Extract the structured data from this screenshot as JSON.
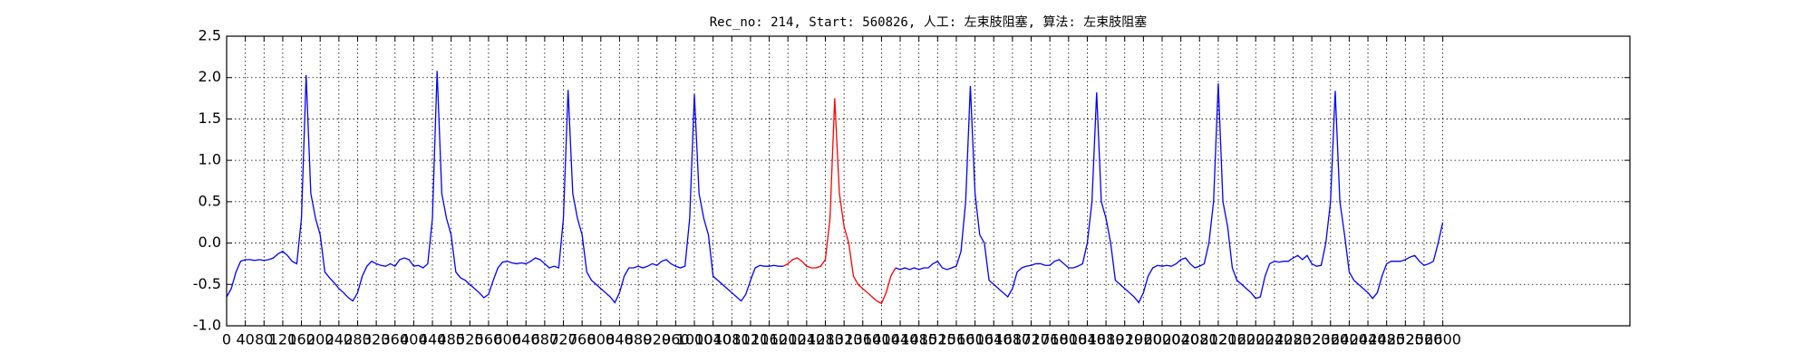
{
  "chart_data": {
    "type": "line",
    "title": "Rec_no: 214, Start: 560826, 人工: 左束肢阻塞, 算法: 左束肢阻塞",
    "xlim": [
      0,
      3000
    ],
    "ylim": [
      -1.0,
      2.5
    ],
    "xticks": [
      0,
      40,
      80,
      120,
      160,
      200,
      240,
      280,
      320,
      360,
      400,
      440,
      480,
      520,
      560,
      600,
      640,
      680,
      720,
      760,
      800,
      840,
      880,
      920,
      960,
      1000,
      1040,
      1080,
      1120,
      1160,
      1200,
      1240,
      1280,
      1320,
      1360,
      1400,
      1440,
      1480,
      1520,
      1560,
      1600,
      1640,
      1680,
      1720,
      1760,
      1800,
      1840,
      1880,
      1920,
      1960,
      2000,
      2040,
      2080,
      2120,
      2160,
      2200,
      2240,
      2280,
      2320,
      2360,
      2400,
      2440,
      2480,
      2520,
      2560,
      2600
    ],
    "yticks": [
      {
        "value": -1.0,
        "label": "-1.0"
      },
      -0.5,
      {
        "value": 0.0,
        "label": "0.0"
      },
      0.5,
      {
        "value": 1.0,
        "label": "1.0"
      },
      1.5,
      {
        "value": 2.0,
        "label": "2.0"
      },
      2.5
    ],
    "grid": true,
    "series": [
      {
        "color": "#0000ff",
        "x": [
          0,
          10,
          20,
          30,
          40,
          50,
          60,
          70,
          80,
          90,
          100,
          110,
          120,
          130,
          140,
          150,
          160,
          170,
          180,
          190,
          200,
          210,
          220,
          230,
          240,
          250,
          260,
          270,
          280,
          290,
          300,
          310,
          320,
          330,
          340,
          350,
          360,
          370,
          380,
          390,
          400,
          410,
          420,
          430,
          440,
          450,
          460,
          470,
          480,
          490,
          500,
          510,
          520,
          530,
          540,
          550,
          560,
          570,
          580,
          590,
          600,
          610,
          620,
          630,
          640,
          650,
          660,
          670,
          680,
          690,
          700,
          710,
          720,
          730,
          740,
          750,
          760,
          770,
          780,
          790,
          800,
          810,
          820,
          830,
          840,
          850,
          860,
          870,
          880,
          890,
          900,
          910,
          920,
          930,
          940,
          950,
          960,
          970,
          980,
          990,
          1000,
          1010,
          1020,
          1030,
          1040,
          1050,
          1060,
          1070,
          1080,
          1090,
          1100,
          1110,
          1120,
          1130,
          1140,
          1150,
          1160,
          1170,
          1180,
          1190,
          1200,
          1210,
          1220,
          1230,
          1240,
          1250,
          1260,
          1270,
          1280,
          1290,
          1300,
          1310,
          1320,
          1330,
          1340,
          1350,
          1360,
          1370,
          1380,
          1390,
          1400,
          1410,
          1420,
          1430,
          1440,
          1450,
          1460,
          1470,
          1480,
          1490,
          1500,
          1510,
          1520,
          1530,
          1540,
          1550,
          1560,
          1570,
          1580,
          1590,
          1600,
          1610,
          1620,
          1630,
          1640,
          1650,
          1660,
          1670,
          1680,
          1690,
          1700,
          1710,
          1720,
          1730,
          1740,
          1750,
          1760,
          1770,
          1780,
          1790,
          1800,
          1810,
          1820,
          1830,
          1840,
          1850,
          1860,
          1870,
          1880,
          1890,
          1900,
          1910,
          1920,
          1930,
          1940,
          1950,
          1960,
          1970,
          1980,
          1990,
          2000,
          2010,
          2020,
          2030,
          2040,
          2050,
          2060,
          2070,
          2080,
          2090,
          2100,
          2110,
          2120,
          2130,
          2140,
          2150,
          2160,
          2170,
          2180,
          2190,
          2200,
          2210,
          2220,
          2230,
          2240,
          2250,
          2260,
          2270,
          2280,
          2290,
          2300,
          2310,
          2320,
          2330,
          2340,
          2350,
          2360,
          2370,
          2380,
          2390,
          2400,
          2410,
          2420,
          2430,
          2440,
          2450,
          2460,
          2470,
          2480,
          2490,
          2500,
          2510,
          2520,
          2530,
          2540,
          2550,
          2560,
          2570,
          2580,
          2590,
          2600
        ],
        "values": [
          -0.65,
          -0.55,
          -0.35,
          -0.22,
          -0.2,
          -0.2,
          -0.21,
          -0.2,
          -0.21,
          -0.2,
          -0.18,
          -0.13,
          -0.1,
          -0.15,
          -0.22,
          -0.25,
          0.3,
          2.03,
          0.6,
          0.3,
          0.1,
          -0.35,
          -0.42,
          -0.48,
          -0.55,
          -0.6,
          -0.66,
          -0.7,
          -0.6,
          -0.4,
          -0.28,
          -0.22,
          -0.25,
          -0.27,
          -0.28,
          -0.25,
          -0.28,
          -0.2,
          -0.18,
          -0.2,
          -0.28,
          -0.27,
          -0.3,
          -0.25,
          0.3,
          2.08,
          0.6,
          0.3,
          0.1,
          -0.35,
          -0.42,
          -0.45,
          -0.5,
          -0.55,
          -0.6,
          -0.66,
          -0.62,
          -0.45,
          -0.3,
          -0.23,
          -0.22,
          -0.24,
          -0.25,
          -0.24,
          -0.25,
          -0.22,
          -0.18,
          -0.2,
          -0.25,
          -0.3,
          -0.28,
          -0.3,
          0.3,
          1.85,
          0.6,
          0.3,
          0.1,
          -0.35,
          -0.45,
          -0.5,
          -0.55,
          -0.6,
          -0.65,
          -0.72,
          -0.6,
          -0.4,
          -0.3,
          -0.3,
          -0.28,
          -0.3,
          -0.28,
          -0.25,
          -0.27,
          -0.22,
          -0.2,
          -0.25,
          -0.28,
          -0.3,
          -0.28,
          0.3,
          1.8,
          0.6,
          0.3,
          0.1,
          -0.4,
          -0.45,
          -0.5,
          -0.55,
          -0.6,
          -0.65,
          -0.7,
          -0.62,
          -0.45,
          -0.3,
          -0.27,
          -0.28,
          -0.28,
          -0.27,
          -0.28,
          -0.28,
          null,
          null,
          null,
          null,
          null,
          null,
          null,
          null,
          null,
          null,
          null,
          null,
          null,
          null,
          null,
          null,
          null,
          null,
          null,
          null,
          null,
          null,
          null,
          -0.3,
          -0.32,
          -0.3,
          -0.32,
          -0.3,
          -0.32,
          -0.3,
          -0.3,
          -0.25,
          -0.22,
          -0.3,
          -0.32,
          -0.3,
          -0.28,
          -0.1,
          0.5,
          1.9,
          0.6,
          0.1,
          0.0,
          -0.45,
          -0.5,
          -0.55,
          -0.6,
          -0.65,
          -0.55,
          -0.35,
          -0.3,
          -0.28,
          -0.27,
          -0.25,
          -0.25,
          -0.27,
          -0.27,
          -0.22,
          -0.2,
          -0.25,
          -0.3,
          -0.3,
          -0.28,
          -0.25,
          0.0,
          0.5,
          1.82,
          0.5,
          0.3,
          0.0,
          -0.45,
          -0.5,
          -0.55,
          -0.6,
          -0.65,
          -0.72,
          -0.6,
          -0.4,
          -0.3,
          -0.27,
          -0.28,
          -0.27,
          -0.28,
          -0.25,
          -0.2,
          -0.18,
          -0.25,
          -0.3,
          -0.28,
          -0.25,
          0.0,
          0.5,
          1.93,
          0.5,
          0.2,
          -0.3,
          -0.45,
          -0.5,
          -0.55,
          -0.6,
          -0.67,
          -0.65,
          -0.4,
          -0.25,
          -0.22,
          -0.23,
          -0.22,
          -0.22,
          -0.18,
          -0.15,
          -0.2,
          -0.15,
          -0.25,
          -0.28,
          -0.27,
          0.0,
          0.5,
          1.84,
          0.5,
          0.1,
          -0.35,
          -0.45,
          -0.5,
          -0.55,
          -0.6,
          -0.67,
          -0.6,
          -0.4,
          -0.25,
          -0.22,
          -0.22,
          -0.22,
          -0.2,
          -0.17,
          -0.15,
          -0.22,
          -0.27,
          -0.25,
          -0.22,
          0.0,
          0.25
        ]
      },
      {
        "color": "#ff0000",
        "x": [
          1190,
          1200,
          1210,
          1220,
          1230,
          1240,
          1250,
          1260,
          1270,
          1280,
          1290,
          1300,
          1310,
          1320,
          1330,
          1340,
          1350,
          1360,
          1370,
          1380,
          1390,
          1400,
          1410,
          1420,
          1430
        ],
        "values": [
          -0.28,
          -0.25,
          -0.2,
          -0.18,
          -0.22,
          -0.28,
          -0.3,
          -0.3,
          -0.28,
          -0.2,
          0.3,
          1.75,
          0.6,
          0.2,
          0.0,
          -0.4,
          -0.5,
          -0.55,
          -0.6,
          -0.65,
          -0.7,
          -0.73,
          -0.6,
          -0.4,
          -0.3
        ]
      }
    ]
  }
}
